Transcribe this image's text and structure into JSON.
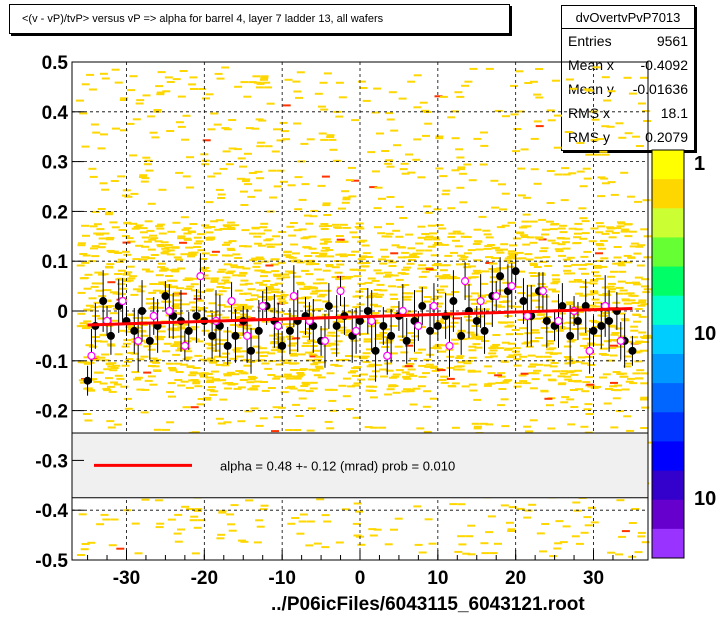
{
  "title": "<(v - vP)/tvP> versus   vP => alpha for barrel 4, layer 7 ladder 13, all wafers",
  "stats": {
    "name": "dvOvertvPvP7013",
    "rows": [
      {
        "label": "Entries",
        "value": "9561"
      },
      {
        "label": "Mean x",
        "value": "-0.4092"
      },
      {
        "label": "Mean y",
        "value": "-0.01636"
      },
      {
        "label": "RMS x",
        "value": "18.1"
      },
      {
        "label": "RMS y",
        "value": "0.2079"
      }
    ]
  },
  "legend": {
    "fit_text": "alpha =    0.48 +-   0.12 (mrad) prob = 0.010"
  },
  "colorbar_labels": [
    "1",
    "10",
    "10"
  ],
  "xfile": "../P06icFiles/6043115_6043121.root",
  "colors": {
    "fit_line": "#ff0000",
    "points": "#000000",
    "open_points": "#ff00ff",
    "hist_bins": "#ffd700",
    "grid": "#000000"
  },
  "chart_data": {
    "type": "scatter",
    "xlim": [
      -37,
      37
    ],
    "ylim": [
      -0.5,
      0.5
    ],
    "xticks": [
      -30,
      -20,
      -10,
      0,
      10,
      20,
      30
    ],
    "yticks": [
      -0.5,
      -0.4,
      -0.3,
      -0.2,
      -0.1,
      0,
      0.1,
      0.2,
      0.3,
      0.4,
      0.5
    ],
    "grid": true,
    "fit_line": {
      "x": [
        -35,
        35
      ],
      "y": [
        -0.028,
        0.005
      ]
    },
    "series": [
      {
        "marker": "filled-circle",
        "x": [
          -35,
          -34,
          -33,
          -32,
          -31,
          -30,
          -29,
          -28,
          -27,
          -26,
          -25,
          -24,
          -23,
          -22,
          -21,
          -20,
          -19,
          -18,
          -17,
          -16,
          -15,
          -14,
          -13,
          -12,
          -11,
          -10,
          -9,
          -8,
          -7,
          -6,
          -5,
          -4,
          -3,
          -2,
          -1,
          0,
          1,
          2,
          3,
          4,
          5,
          6,
          7,
          8,
          9,
          10,
          11,
          12,
          13,
          14,
          15,
          16,
          17,
          18,
          19,
          20,
          21,
          22,
          23,
          24,
          25,
          26,
          27,
          28,
          29,
          30,
          31,
          32,
          33,
          34,
          35
        ],
        "y": [
          -0.14,
          -0.03,
          0.02,
          -0.05,
          0.01,
          -0.02,
          -0.04,
          0.0,
          -0.06,
          -0.03,
          0.03,
          -0.01,
          -0.02,
          -0.04,
          -0.01,
          -0.02,
          -0.05,
          -0.03,
          -0.07,
          -0.05,
          -0.02,
          -0.08,
          -0.04,
          0.01,
          -0.02,
          -0.07,
          -0.04,
          -0.02,
          -0.01,
          -0.03,
          -0.06,
          0.01,
          -0.03,
          -0.01,
          -0.05,
          -0.02,
          0.0,
          -0.08,
          -0.03,
          -0.05,
          -0.01,
          -0.06,
          -0.02,
          0.01,
          -0.04,
          -0.03,
          -0.01,
          0.02,
          -0.05,
          0.0,
          -0.02,
          -0.04,
          0.03,
          0.07,
          0.04,
          0.08,
          0.02,
          -0.01,
          0.04,
          -0.02,
          -0.03,
          0.01,
          -0.05,
          -0.02,
          0.01,
          -0.04,
          -0.03,
          -0.02,
          0.0,
          -0.06,
          -0.08
        ]
      },
      {
        "marker": "open-circle",
        "x": [
          -34.5,
          -32.5,
          -30.5,
          -28.5,
          -26.5,
          -24.5,
          -22.5,
          -20.5,
          -18.5,
          -16.5,
          -14.5,
          -12.5,
          -10.5,
          -8.5,
          -6.5,
          -4.5,
          -2.5,
          -0.5,
          1.5,
          3.5,
          5.5,
          7.5,
          9.5,
          11.5,
          13.5,
          15.5,
          17.5,
          19.5,
          21.5,
          23.5,
          25.5,
          27.5,
          29.5,
          31.5,
          33.5
        ],
        "y": [
          -0.09,
          -0.02,
          0.02,
          -0.06,
          -0.01,
          0.0,
          -0.07,
          0.07,
          -0.02,
          0.02,
          -0.05,
          0.01,
          -0.03,
          0.03,
          -0.02,
          -0.06,
          0.04,
          -0.04,
          -0.02,
          -0.09,
          0.0,
          -0.03,
          0.01,
          -0.07,
          0.06,
          0.02,
          0.03,
          0.05,
          -0.01,
          0.04,
          -0.02,
          0.0,
          -0.08,
          0.01,
          -0.06
        ]
      }
    ]
  }
}
